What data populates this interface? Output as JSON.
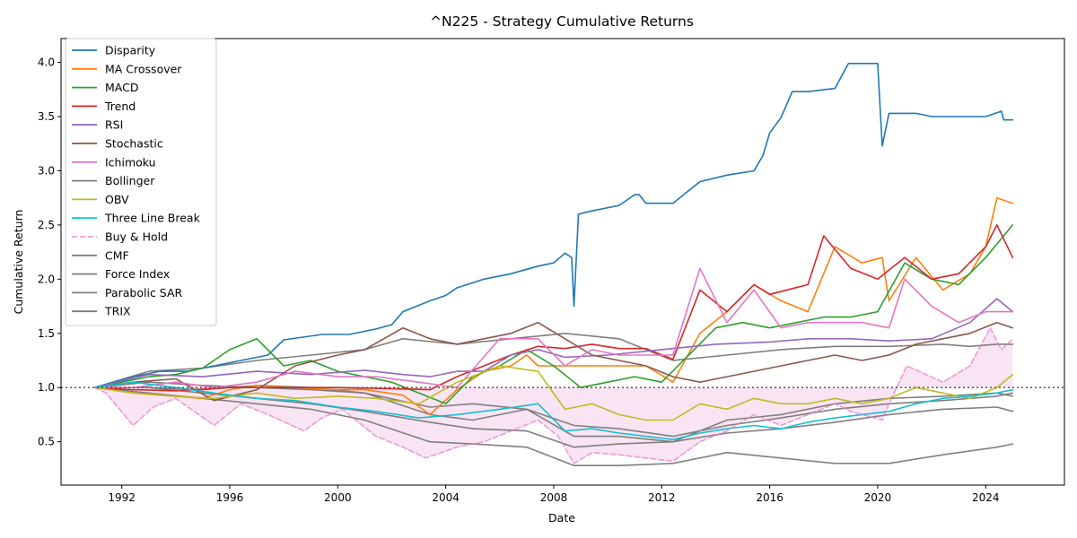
{
  "chart_data": {
    "type": "line",
    "title": "^N225 - Strategy Cumulative Returns",
    "xlabel": "Date",
    "ylabel": "Cumulative Return",
    "x_ticks": [
      "1992",
      "1996",
      "2000",
      "2004",
      "2008",
      "2012",
      "2016",
      "2020",
      "2024"
    ],
    "y_ticks": [
      "0.5",
      "1.0",
      "1.5",
      "2.0",
      "2.5",
      "3.0",
      "3.5",
      "4.0"
    ],
    "xlim": [
      "1989-10",
      "2026-12"
    ],
    "ylim": [
      0.1,
      4.22
    ],
    "grid": false,
    "legend_position": "upper-left",
    "reference_line": {
      "y": 1.0,
      "style": "dotted",
      "color": "#555555"
    },
    "fill_between": {
      "series": "Buy & Hold",
      "baseline": 1.0,
      "color": "#e377c2",
      "opacity": 0.2
    },
    "series": [
      {
        "name": "Disparity",
        "color": "#1f77b4",
        "style": "solid",
        "x": [
          "1991-01",
          "1992-06",
          "1993-06",
          "1994-06",
          "1995-06",
          "1996-06",
          "1997-06",
          "1998-01",
          "1999-06",
          "2000-06",
          "2001-06",
          "2002-01",
          "2002-06",
          "2003-06",
          "2004-01",
          "2004-06",
          "2005-06",
          "2006-06",
          "2007-06",
          "2008-01",
          "2008-06",
          "2008-09",
          "2008-10",
          "2008-12",
          "2009-06",
          "2010-06",
          "2011-01",
          "2011-03",
          "2011-06",
          "2012-06",
          "2013-06",
          "2014-06",
          "2015-06",
          "2015-10",
          "2016-01",
          "2016-06",
          "2016-11",
          "2017-06",
          "2018-06",
          "2018-12",
          "2019-06",
          "2020-01",
          "2020-03",
          "2020-06",
          "2021-06",
          "2022-01",
          "2022-06",
          "2023-06",
          "2024-01",
          "2024-08",
          "2024-09",
          "2025-01"
        ],
        "y": [
          1.0,
          1.1,
          1.15,
          1.15,
          1.2,
          1.25,
          1.3,
          1.44,
          1.49,
          1.49,
          1.54,
          1.58,
          1.7,
          1.8,
          1.85,
          1.92,
          2.0,
          2.05,
          2.12,
          2.15,
          2.24,
          2.2,
          1.75,
          2.6,
          2.63,
          2.68,
          2.78,
          2.78,
          2.7,
          2.7,
          2.9,
          2.96,
          3.0,
          3.14,
          3.35,
          3.49,
          3.73,
          3.73,
          3.76,
          3.99,
          3.99,
          3.99,
          3.23,
          3.53,
          3.53,
          3.5,
          3.5,
          3.5,
          3.5,
          3.55,
          3.47,
          3.47
        ]
      },
      {
        "name": "MA Crossover",
        "color": "#ff7f0e",
        "style": "solid",
        "x": [
          "1991-01",
          "1992-06",
          "1993-06",
          "1995-01",
          "1996-01",
          "1997-01",
          "1998-06",
          "2000-01",
          "2001-01",
          "2002-06",
          "2003-06",
          "2004-06",
          "2005-06",
          "2006-06",
          "2007-01",
          "2007-06",
          "2008-06",
          "2009-06",
          "2010-06",
          "2011-06",
          "2012-06",
          "2013-06",
          "2014-06",
          "2015-06",
          "2016-06",
          "2017-06",
          "2018-06",
          "2019-06",
          "2020-03",
          "2020-06",
          "2021-06",
          "2022-06",
          "2023-06",
          "2024-01",
          "2024-06",
          "2025-01"
        ],
        "y": [
          1.0,
          0.95,
          0.93,
          0.9,
          0.98,
          1.02,
          1.0,
          0.98,
          0.98,
          0.93,
          0.75,
          0.98,
          1.15,
          1.2,
          1.3,
          1.2,
          1.2,
          1.2,
          1.2,
          1.2,
          1.05,
          1.5,
          1.7,
          1.95,
          1.8,
          1.7,
          2.3,
          2.15,
          2.2,
          1.8,
          2.2,
          1.9,
          2.05,
          2.3,
          2.75,
          2.7
        ]
      },
      {
        "name": "MACD",
        "color": "#2ca02c",
        "style": "solid",
        "x": [
          "1991-01",
          "1992-01",
          "1993-01",
          "1994-01",
          "1995-01",
          "1996-01",
          "1997-01",
          "1998-01",
          "1999-01",
          "2000-01",
          "2001-01",
          "2002-01",
          "2003-01",
          "2004-01",
          "2005-01",
          "2006-01",
          "2007-01",
          "2008-01",
          "2009-01",
          "2010-01",
          "2011-01",
          "2012-01",
          "2013-01",
          "2014-01",
          "2015-01",
          "2016-01",
          "2017-01",
          "2018-01",
          "2019-01",
          "2020-01",
          "2021-01",
          "2022-01",
          "2023-01",
          "2024-01",
          "2025-01"
        ],
        "y": [
          1.0,
          1.05,
          1.1,
          1.12,
          1.18,
          1.35,
          1.45,
          1.2,
          1.25,
          1.15,
          1.1,
          1.05,
          0.95,
          0.85,
          1.1,
          1.2,
          1.35,
          1.2,
          1.0,
          1.05,
          1.1,
          1.05,
          1.3,
          1.55,
          1.6,
          1.55,
          1.6,
          1.65,
          1.65,
          1.7,
          2.15,
          2.0,
          1.95,
          2.2,
          2.5
        ]
      },
      {
        "name": "Trend",
        "color": "#d62728",
        "style": "solid",
        "x": [
          "1991-01",
          "1992-06",
          "1994-01",
          "1996-01",
          "1998-01",
          "2000-01",
          "2002-01",
          "2003-06",
          "2004-06",
          "2005-06",
          "2006-06",
          "2007-06",
          "2008-06",
          "2009-06",
          "2010-06",
          "2011-06",
          "2012-06",
          "2013-06",
          "2014-06",
          "2015-06",
          "2016-01",
          "2017-06",
          "2018-01",
          "2019-01",
          "2020-01",
          "2021-01",
          "2022-01",
          "2023-01",
          "2024-01",
          "2024-06",
          "2025-01"
        ],
        "y": [
          1.0,
          0.98,
          0.97,
          1.0,
          1.0,
          1.0,
          0.99,
          0.98,
          1.1,
          1.2,
          1.3,
          1.38,
          1.36,
          1.4,
          1.36,
          1.36,
          1.26,
          1.9,
          1.7,
          1.95,
          1.86,
          1.95,
          2.4,
          2.1,
          2.0,
          2.2,
          2.0,
          2.05,
          2.3,
          2.5,
          2.2
        ]
      },
      {
        "name": "RSI",
        "color": "#9467bd",
        "style": "solid",
        "x": [
          "1991-01",
          "1993-01",
          "1995-01",
          "1997-01",
          "1999-01",
          "2001-01",
          "2002-06",
          "2003-06",
          "2004-06",
          "2005-06",
          "2006-06",
          "2007-06",
          "2008-06",
          "2010-01",
          "2012-01",
          "2014-01",
          "2016-01",
          "2017-06",
          "2019-01",
          "2020-06",
          "2022-01",
          "2023-06",
          "2024-06",
          "2025-01"
        ],
        "y": [
          1.0,
          1.12,
          1.1,
          1.15,
          1.12,
          1.16,
          1.12,
          1.1,
          1.15,
          1.15,
          1.3,
          1.35,
          1.28,
          1.3,
          1.35,
          1.4,
          1.42,
          1.45,
          1.45,
          1.43,
          1.45,
          1.6,
          1.82,
          1.7
        ]
      },
      {
        "name": "Stochastic",
        "color": "#8c564b",
        "style": "solid",
        "x": [
          "1991-01",
          "1992-06",
          "1994-01",
          "1995-06",
          "1997-01",
          "1998-06",
          "2000-01",
          "2001-01",
          "2002-06",
          "2003-06",
          "2004-06",
          "2005-06",
          "2006-06",
          "2007-06",
          "2008-06",
          "2009-06",
          "2010-06",
          "2011-06",
          "2012-06",
          "2013-06",
          "2014-06",
          "2015-06",
          "2016-06",
          "2017-06",
          "2018-06",
          "2019-06",
          "2020-06",
          "2021-06",
          "2022-06",
          "2023-06",
          "2024-06",
          "2025-01"
        ],
        "y": [
          1.0,
          1.05,
          1.08,
          0.88,
          0.98,
          1.2,
          1.3,
          1.35,
          1.55,
          1.45,
          1.4,
          1.45,
          1.5,
          1.6,
          1.45,
          1.3,
          1.25,
          1.2,
          1.1,
          1.05,
          1.1,
          1.15,
          1.2,
          1.25,
          1.3,
          1.25,
          1.3,
          1.4,
          1.45,
          1.5,
          1.6,
          1.55
        ]
      },
      {
        "name": "Ichimoku",
        "color": "#e377c2",
        "style": "solid",
        "x": [
          "1991-01",
          "1992-06",
          "1994-01",
          "1995-06",
          "1997-01",
          "1998-06",
          "2000-01",
          "2001-06",
          "2003-01",
          "2004-06",
          "2006-01",
          "2007-06",
          "2008-06",
          "2009-06",
          "2010-06",
          "2011-06",
          "2012-06",
          "2013-06",
          "2014-06",
          "2015-06",
          "2016-06",
          "2017-06",
          "2018-06",
          "2019-06",
          "2020-06",
          "2021-01",
          "2022-01",
          "2023-01",
          "2024-01",
          "2025-01"
        ],
        "y": [
          1.0,
          1.0,
          1.05,
          1.0,
          1.05,
          1.15,
          1.1,
          1.1,
          1.05,
          1.0,
          1.45,
          1.45,
          1.2,
          1.35,
          1.3,
          1.3,
          1.3,
          2.1,
          1.6,
          1.9,
          1.55,
          1.6,
          1.6,
          1.6,
          1.55,
          2.0,
          1.75,
          1.6,
          1.7,
          1.7
        ]
      },
      {
        "name": "Bollinger",
        "color": "#7f7f7f",
        "style": "solid",
        "x": [
          "1991-01",
          "1993-01",
          "1995-01",
          "1997-01",
          "1999-01",
          "2001-01",
          "2002-06",
          "2004-06",
          "2006-06",
          "2008-06",
          "2010-06",
          "2012-06",
          "2014-06",
          "2016-06",
          "2018-06",
          "2020-06",
          "2022-06",
          "2023-06",
          "2024-06",
          "2025-01"
        ],
        "y": [
          1.0,
          1.15,
          1.18,
          1.25,
          1.3,
          1.35,
          1.45,
          1.4,
          1.45,
          1.5,
          1.45,
          1.25,
          1.3,
          1.35,
          1.38,
          1.38,
          1.4,
          1.38,
          1.4,
          1.4
        ]
      },
      {
        "name": "OBV",
        "color": "#bcbd22",
        "style": "solid",
        "x": [
          "1991-01",
          "1992-06",
          "1994-01",
          "1995-06",
          "1997-01",
          "1998-06",
          "2000-01",
          "2001-06",
          "2003-01",
          "2004-06",
          "2006-01",
          "2007-06",
          "2008-06",
          "2009-06",
          "2010-06",
          "2011-06",
          "2012-06",
          "2013-06",
          "2014-06",
          "2015-06",
          "2016-06",
          "2017-06",
          "2018-06",
          "2019-06",
          "2020-06",
          "2021-06",
          "2022-06",
          "2023-06",
          "2024-06",
          "2025-01"
        ],
        "y": [
          1.0,
          0.95,
          0.92,
          0.9,
          0.95,
          0.9,
          0.92,
          0.9,
          0.85,
          1.05,
          1.2,
          1.15,
          0.8,
          0.85,
          0.75,
          0.7,
          0.7,
          0.85,
          0.8,
          0.9,
          0.85,
          0.85,
          0.9,
          0.85,
          0.9,
          1.0,
          0.95,
          0.9,
          1.0,
          1.12
        ]
      },
      {
        "name": "Three Line Break",
        "color": "#17becf",
        "style": "solid",
        "x": [
          "1991-01",
          "1992-06",
          "1994-01",
          "1995-06",
          "1997-01",
          "1998-06",
          "2000-01",
          "2001-06",
          "2003-01",
          "2004-06",
          "2006-01",
          "2007-06",
          "2008-06",
          "2009-06",
          "2010-06",
          "2011-06",
          "2012-06",
          "2013-06",
          "2014-06",
          "2015-06",
          "2016-06",
          "2017-06",
          "2018-06",
          "2019-06",
          "2020-06",
          "2021-06",
          "2022-06",
          "2023-06",
          "2024-06",
          "2025-01"
        ],
        "y": [
          1.0,
          1.05,
          1.0,
          0.95,
          0.9,
          0.88,
          0.82,
          0.78,
          0.72,
          0.75,
          0.8,
          0.85,
          0.6,
          0.62,
          0.58,
          0.55,
          0.52,
          0.58,
          0.62,
          0.65,
          0.62,
          0.68,
          0.72,
          0.75,
          0.78,
          0.85,
          0.9,
          0.92,
          0.95,
          0.98
        ]
      },
      {
        "name": "Buy & Hold",
        "color": "#e377c2",
        "style": "dashed",
        "x": [
          "1991-01",
          "1991-06",
          "1992-06",
          "1993-03",
          "1994-01",
          "1995-06",
          "1996-06",
          "1997-06",
          "1998-10",
          "1999-06",
          "2000-03",
          "2001-06",
          "2002-06",
          "2003-04",
          "2004-06",
          "2005-06",
          "2006-06",
          "2007-06",
          "2008-03",
          "2008-10",
          "2009-06",
          "2010-06",
          "2011-06",
          "2012-06",
          "2013-06",
          "2014-06",
          "2015-06",
          "2016-06",
          "2017-06",
          "2018-06",
          "2019-01",
          "2020-03",
          "2020-06",
          "2021-02",
          "2022-06",
          "2023-06",
          "2024-03",
          "2024-08",
          "2025-01"
        ],
        "y": [
          1.0,
          0.95,
          0.65,
          0.82,
          0.9,
          0.65,
          0.85,
          0.75,
          0.6,
          0.72,
          0.8,
          0.55,
          0.45,
          0.35,
          0.45,
          0.5,
          0.6,
          0.7,
          0.55,
          0.3,
          0.4,
          0.38,
          0.35,
          0.32,
          0.5,
          0.6,
          0.75,
          0.65,
          0.75,
          0.85,
          0.78,
          0.7,
          0.85,
          1.2,
          1.05,
          1.2,
          1.55,
          1.35,
          1.45
        ]
      },
      {
        "name": "CMF",
        "color": "#7f7f7f",
        "style": "solid",
        "x": [
          "1991-01",
          "1993-01",
          "1995-01",
          "1997-01",
          "1999-01",
          "2001-01",
          "2003-06",
          "2005-01",
          "2007-01",
          "2008-10",
          "2010-06",
          "2012-06",
          "2014-06",
          "2016-06",
          "2018-06",
          "2020-06",
          "2022-06",
          "2024-06",
          "2025-01"
        ],
        "y": [
          1.0,
          0.95,
          0.9,
          0.85,
          0.8,
          0.7,
          0.5,
          0.48,
          0.45,
          0.28,
          0.28,
          0.3,
          0.4,
          0.35,
          0.3,
          0.3,
          0.38,
          0.45,
          0.48
        ]
      },
      {
        "name": "Force Index",
        "color": "#7f7f7f",
        "style": "solid",
        "x": [
          "1991-01",
          "1993-01",
          "1995-01",
          "1997-01",
          "1999-01",
          "2001-01",
          "2003-06",
          "2005-01",
          "2007-01",
          "2008-10",
          "2010-06",
          "2012-06",
          "2014-06",
          "2016-06",
          "2018-06",
          "2020-06",
          "2022-06",
          "2024-06",
          "2025-01"
        ],
        "y": [
          1.0,
          1.0,
          0.95,
          0.9,
          0.85,
          0.78,
          0.68,
          0.62,
          0.6,
          0.45,
          0.48,
          0.5,
          0.58,
          0.62,
          0.68,
          0.75,
          0.8,
          0.82,
          0.78
        ]
      },
      {
        "name": "Parabolic SAR",
        "color": "#7f7f7f",
        "style": "solid",
        "x": [
          "1991-01",
          "1993-01",
          "1995-01",
          "1997-01",
          "1999-01",
          "2001-01",
          "2003-06",
          "2005-01",
          "2007-01",
          "2008-10",
          "2010-06",
          "2012-06",
          "2014-06",
          "2016-06",
          "2018-06",
          "2020-06",
          "2022-06",
          "2024-06",
          "2025-01"
        ],
        "y": [
          1.0,
          1.05,
          1.02,
          1.0,
          0.98,
          0.95,
          0.82,
          0.85,
          0.8,
          0.65,
          0.62,
          0.55,
          0.65,
          0.72,
          0.8,
          0.85,
          0.88,
          0.92,
          0.95
        ]
      },
      {
        "name": "TRIX",
        "color": "#7f7f7f",
        "style": "solid",
        "x": [
          "1991-01",
          "1993-01",
          "1995-01",
          "1997-01",
          "1999-01",
          "2001-01",
          "2003-06",
          "2005-01",
          "2007-01",
          "2008-10",
          "2010-06",
          "2012-06",
          "2014-06",
          "2016-06",
          "2018-06",
          "2020-06",
          "2022-06",
          "2024-06",
          "2025-01"
        ],
        "y": [
          1.0,
          1.0,
          0.98,
          1.02,
          1.0,
          0.95,
          0.75,
          0.7,
          0.8,
          0.55,
          0.55,
          0.5,
          0.7,
          0.75,
          0.85,
          0.9,
          0.92,
          0.95,
          0.92
        ]
      }
    ]
  }
}
